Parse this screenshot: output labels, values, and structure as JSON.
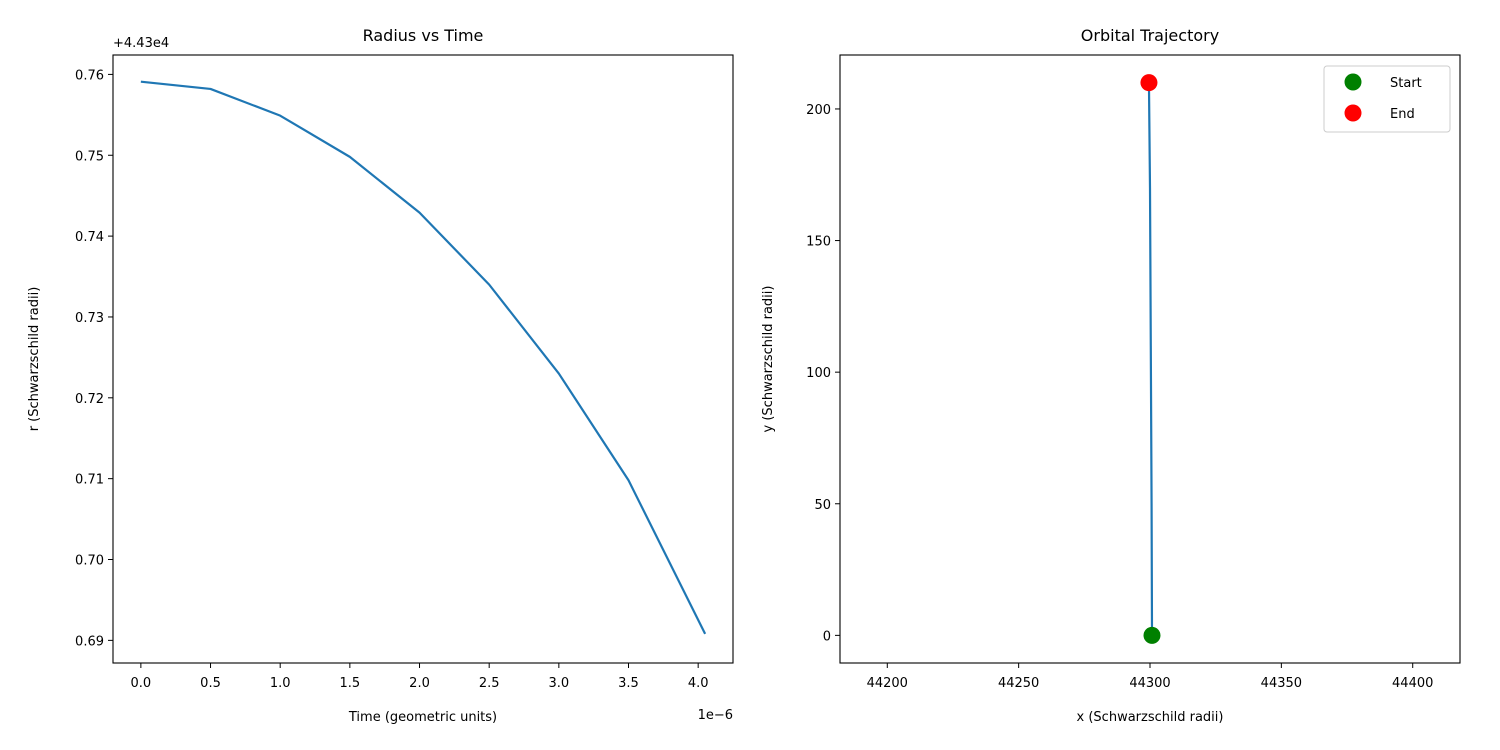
{
  "chart_data": [
    {
      "type": "line",
      "title": "Radius vs Time",
      "xlabel": "Time (geometric units)",
      "ylabel": "r (Schwarzschild radii)",
      "x_scale_label": "1e−6",
      "y_offset_label": "+4.43e4",
      "xlim": [
        -0.2,
        4.25
      ],
      "ylim": [
        0.6872,
        0.7624
      ],
      "grid": false,
      "xticks": [
        0.0,
        0.5,
        1.0,
        1.5,
        2.0,
        2.5,
        3.0,
        3.5,
        4.0
      ],
      "xtick_labels": [
        "0.0",
        "0.5",
        "1.0",
        "1.5",
        "2.0",
        "2.5",
        "3.0",
        "3.5",
        "4.0"
      ],
      "yticks": [
        0.69,
        0.7,
        0.71,
        0.72,
        0.73,
        0.74,
        0.75,
        0.76
      ],
      "ytick_labels": [
        "0.69",
        "0.70",
        "0.71",
        "0.72",
        "0.73",
        "0.74",
        "0.75",
        "0.76"
      ],
      "series": [
        {
          "color": "#1f77b4",
          "x": [
            0.0,
            0.5,
            1.0,
            1.5,
            2.0,
            2.5,
            3.0,
            3.5,
            4.05
          ],
          "y": [
            0.7591,
            0.7582,
            0.7549,
            0.7498,
            0.7429,
            0.734,
            0.723,
            0.7098,
            0.6908
          ]
        }
      ]
    },
    {
      "type": "line",
      "title": "Orbital Trajectory",
      "xlabel": "x (Schwarzschild radii)",
      "ylabel": "y (Schwarzschild radii)",
      "xlim": [
        44182,
        44418
      ],
      "ylim": [
        -10.5,
        220.5
      ],
      "grid": false,
      "legend_position": "top-right",
      "xticks": [
        44200,
        44250,
        44300,
        44350,
        44400
      ],
      "xtick_labels": [
        "44200",
        "44250",
        "44300",
        "44350",
        "44400"
      ],
      "yticks": [
        0,
        50,
        100,
        150,
        200
      ],
      "ytick_labels": [
        "0",
        "50",
        "100",
        "150",
        "200"
      ],
      "series": [
        {
          "color": "#1f77b4",
          "x": [
            44300.76,
            44300.6,
            44300.3,
            44300.0,
            44299.6
          ],
          "y": [
            0,
            50,
            110,
            170,
            210
          ]
        }
      ],
      "markers": [
        {
          "name": "Start",
          "color": "#008000",
          "x": 44300.76,
          "y": 0
        },
        {
          "name": "End",
          "color": "#ff0000",
          "x": 44299.6,
          "y": 210
        }
      ]
    }
  ]
}
